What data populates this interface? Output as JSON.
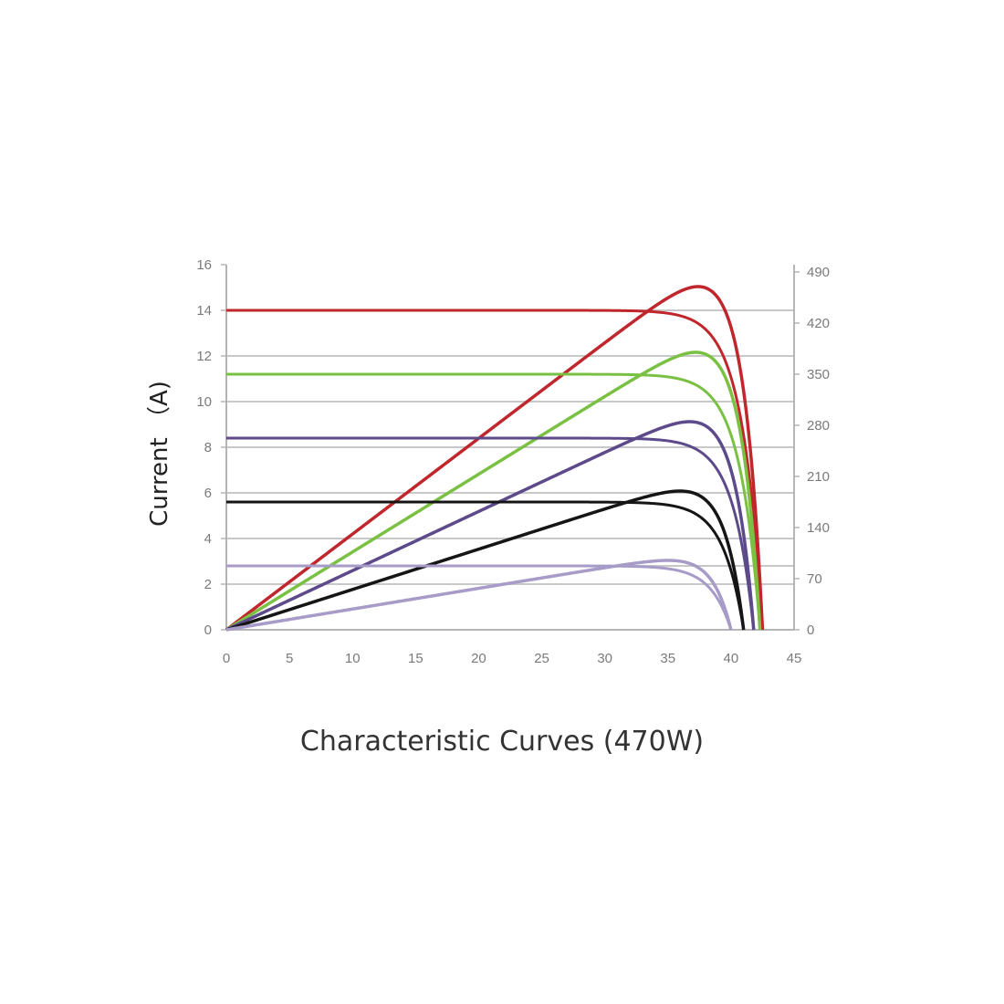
{
  "caption": "Characteristic Curves (470W)",
  "chart_data": {
    "type": "line",
    "ylabel": "Current （A)",
    "xlim": [
      0,
      45
    ],
    "ylim": [
      0,
      16
    ],
    "y2lim": [
      0,
      490
    ],
    "x_ticks": [
      "0",
      "5",
      "10",
      "15",
      "20",
      "25",
      "30",
      "35",
      "40",
      "45"
    ],
    "y_ticks": [
      "0",
      "2",
      "4",
      "6",
      "8",
      "10",
      "12",
      "14",
      "16"
    ],
    "y2_ticks": [
      "0",
      "70",
      "140",
      "210",
      "280",
      "350",
      "420",
      "490"
    ],
    "grid": true,
    "gridlines_y": [
      2,
      2.8,
      4,
      6,
      8,
      10,
      12,
      14
    ],
    "curves": [
      {
        "color": "#c0272d",
        "isc": 14.0,
        "voc": 42.5,
        "pmax": 470,
        "vmp": 35.5
      },
      {
        "color": "#7ac143",
        "isc": 11.2,
        "voc": 42.3,
        "pmax": 380,
        "vmp": 35.5
      },
      {
        "color": "#5c4a8a",
        "isc": 8.4,
        "voc": 41.8,
        "pmax": 285,
        "vmp": 35.3
      },
      {
        "color": "#151515",
        "isc": 5.6,
        "voc": 41.0,
        "pmax": 190,
        "vmp": 35.0
      },
      {
        "color": "#a79bc8",
        "isc": 2.8,
        "voc": 40.0,
        "pmax": 95,
        "vmp": 34.5
      }
    ]
  }
}
